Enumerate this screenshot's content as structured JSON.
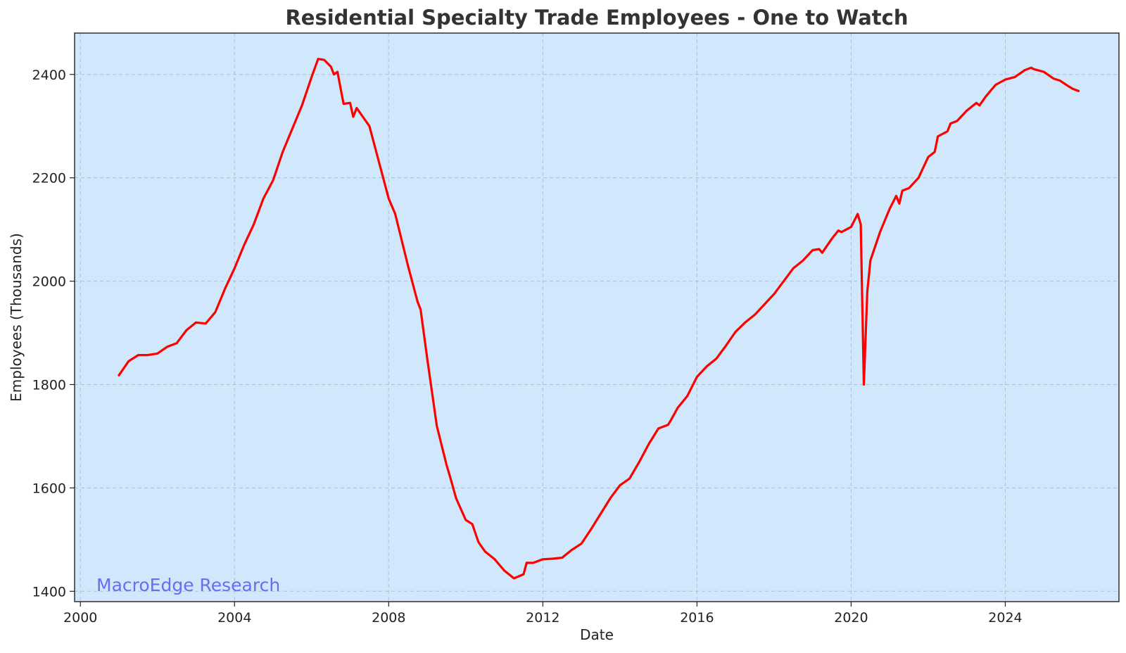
{
  "chart_data": {
    "type": "line",
    "title": "Residential Specialty Trade Employees - One to Watch",
    "xlabel": "Date",
    "ylabel": "Employees (Thousands)",
    "xlim": [
      1999.85,
      2026.95
    ],
    "ylim": [
      1380,
      2480
    ],
    "x_ticks": [
      2000,
      2004,
      2008,
      2012,
      2016,
      2020,
      2024
    ],
    "y_ticks": [
      1400,
      1600,
      1800,
      2000,
      2200,
      2400
    ],
    "grid": true,
    "legend": "none",
    "watermark": "MacroEdge Research",
    "colors": {
      "plot_background": "#d1e7fb",
      "line": "#ff0000",
      "watermark": "#6b6bf5"
    },
    "series": [
      {
        "points": [
          [
            2001.0,
            1818
          ],
          [
            2001.25,
            1845
          ],
          [
            2001.5,
            1857
          ],
          [
            2001.75,
            1857
          ],
          [
            2002.0,
            1860
          ],
          [
            2002.25,
            1873
          ],
          [
            2002.5,
            1880
          ],
          [
            2002.75,
            1905
          ],
          [
            2003.0,
            1920
          ],
          [
            2003.25,
            1918
          ],
          [
            2003.5,
            1940
          ],
          [
            2003.75,
            1985
          ],
          [
            2004.0,
            2025
          ],
          [
            2004.25,
            2070
          ],
          [
            2004.5,
            2110
          ],
          [
            2004.75,
            2160
          ],
          [
            2005.0,
            2195
          ],
          [
            2005.25,
            2250
          ],
          [
            2005.5,
            2295
          ],
          [
            2005.75,
            2340
          ],
          [
            2006.0,
            2395
          ],
          [
            2006.17,
            2430
          ],
          [
            2006.33,
            2428
          ],
          [
            2006.5,
            2415
          ],
          [
            2006.58,
            2400
          ],
          [
            2006.67,
            2405
          ],
          [
            2006.83,
            2343
          ],
          [
            2007.0,
            2345
          ],
          [
            2007.08,
            2318
          ],
          [
            2007.17,
            2335
          ],
          [
            2007.5,
            2300
          ],
          [
            2007.75,
            2230
          ],
          [
            2008.0,
            2160
          ],
          [
            2008.17,
            2130
          ],
          [
            2008.5,
            2030
          ],
          [
            2008.75,
            1960
          ],
          [
            2008.83,
            1945
          ],
          [
            2009.0,
            1850
          ],
          [
            2009.25,
            1720
          ],
          [
            2009.5,
            1645
          ],
          [
            2009.58,
            1625
          ],
          [
            2009.75,
            1580
          ],
          [
            2010.0,
            1538
          ],
          [
            2010.17,
            1530
          ],
          [
            2010.33,
            1495
          ],
          [
            2010.5,
            1477
          ],
          [
            2010.75,
            1462
          ],
          [
            2011.0,
            1440
          ],
          [
            2011.25,
            1425
          ],
          [
            2011.5,
            1433
          ],
          [
            2011.58,
            1455
          ],
          [
            2011.75,
            1455
          ],
          [
            2012.0,
            1462
          ],
          [
            2012.25,
            1463
          ],
          [
            2012.5,
            1465
          ],
          [
            2012.75,
            1480
          ],
          [
            2013.0,
            1492
          ],
          [
            2013.25,
            1520
          ],
          [
            2013.5,
            1550
          ],
          [
            2013.75,
            1580
          ],
          [
            2014.0,
            1605
          ],
          [
            2014.25,
            1618
          ],
          [
            2014.5,
            1650
          ],
          [
            2014.75,
            1685
          ],
          [
            2015.0,
            1715
          ],
          [
            2015.25,
            1722
          ],
          [
            2015.33,
            1732
          ],
          [
            2015.5,
            1755
          ],
          [
            2015.75,
            1778
          ],
          [
            2016.0,
            1815
          ],
          [
            2016.25,
            1835
          ],
          [
            2016.5,
            1850
          ],
          [
            2016.75,
            1875
          ],
          [
            2017.0,
            1902
          ],
          [
            2017.25,
            1920
          ],
          [
            2017.5,
            1935
          ],
          [
            2017.75,
            1955
          ],
          [
            2018.0,
            1975
          ],
          [
            2018.25,
            2000
          ],
          [
            2018.5,
            2025
          ],
          [
            2018.75,
            2040
          ],
          [
            2019.0,
            2060
          ],
          [
            2019.17,
            2062
          ],
          [
            2019.25,
            2055
          ],
          [
            2019.5,
            2082
          ],
          [
            2019.67,
            2098
          ],
          [
            2019.75,
            2095
          ],
          [
            2020.0,
            2105
          ],
          [
            2020.17,
            2130
          ],
          [
            2020.25,
            2110
          ],
          [
            2020.33,
            1800
          ],
          [
            2020.42,
            1980
          ],
          [
            2020.5,
            2040
          ],
          [
            2020.75,
            2095
          ],
          [
            2021.0,
            2140
          ],
          [
            2021.17,
            2165
          ],
          [
            2021.25,
            2150
          ],
          [
            2021.33,
            2175
          ],
          [
            2021.5,
            2180
          ],
          [
            2021.75,
            2200
          ],
          [
            2022.0,
            2240
          ],
          [
            2022.17,
            2250
          ],
          [
            2022.25,
            2280
          ],
          [
            2022.5,
            2290
          ],
          [
            2022.58,
            2305
          ],
          [
            2022.75,
            2310
          ],
          [
            2023.0,
            2330
          ],
          [
            2023.25,
            2345
          ],
          [
            2023.33,
            2340
          ],
          [
            2023.5,
            2358
          ],
          [
            2023.75,
            2380
          ],
          [
            2024.0,
            2390
          ],
          [
            2024.25,
            2395
          ],
          [
            2024.5,
            2408
          ],
          [
            2024.67,
            2413
          ],
          [
            2024.75,
            2410
          ],
          [
            2025.0,
            2405
          ],
          [
            2025.25,
            2392
          ],
          [
            2025.42,
            2388
          ],
          [
            2025.58,
            2380
          ],
          [
            2025.75,
            2372
          ],
          [
            2025.9,
            2368
          ]
        ]
      }
    ]
  }
}
